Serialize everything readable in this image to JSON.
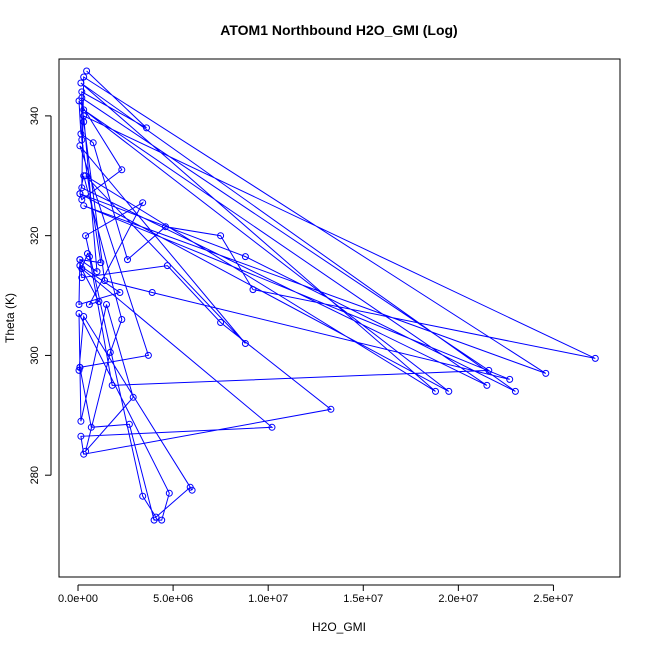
{
  "chart_data": {
    "type": "scatter",
    "title": "ATOM1 Northbound H2O_GMI (Log)",
    "xlabel": "H2O_GMI",
    "ylabel": "Theta (K)",
    "xlim": [
      -1000000,
      28500000
    ],
    "ylim": [
      263,
      349.5
    ],
    "xticks": [
      0,
      5000000,
      10000000,
      15000000,
      20000000,
      25000000
    ],
    "xtick_labels": [
      "0.0e+00",
      "5.0e+06",
      "1.0e+07",
      "1.5e+07",
      "2.0e+07",
      "2.5e+07"
    ],
    "yticks": [
      280,
      300,
      320,
      340
    ],
    "ytick_labels": [
      "280",
      "300",
      "320",
      "340"
    ],
    "color": "#0000ff",
    "marker": "open-circle",
    "connected": true,
    "grid": false,
    "legend": "none",
    "series": [
      {
        "x": [
          450000,
          3600000,
          200000,
          200000,
          1200000,
          100000,
          50000,
          2200000,
          100000,
          1100000,
          600000,
          3400000,
          400000,
          3400000,
          4100000,
          5900000,
          6000000,
          300000,
          50000,
          100000,
          700000,
          2700000,
          4000000,
          4400000,
          4800000,
          50000,
          150000,
          1500000,
          2900000,
          400000,
          1700000,
          2300000,
          300000,
          100000,
          200000,
          2300000,
          50000,
          150000,
          800000,
          2600000,
          4600000,
          7500000,
          9200000,
          27200000,
          300000,
          1000000,
          100000,
          200000,
          4700000,
          7500000,
          13300000,
          300000,
          150000,
          10200000,
          200000,
          500000,
          600000,
          1800000,
          21600000,
          200000,
          300000,
          1400000,
          3900000,
          22700000,
          300000,
          24600000,
          300000,
          200000,
          21500000,
          300000,
          19500000,
          100000,
          8800000,
          23000000,
          150000,
          18800000,
          400000,
          8800000,
          100000,
          3700000,
          100000
        ],
        "y": [
          347.5,
          338,
          344,
          336,
          315.5,
          316,
          308.5,
          310.5,
          315,
          309,
          308.5,
          325.5,
          320,
          276.5,
          273,
          278,
          277.5,
          306.5,
          297.5,
          298,
          288,
          288.5,
          272.5,
          272.5,
          277,
          307,
          289,
          308.5,
          293,
          284,
          300.5,
          306,
          330,
          327,
          326,
          331,
          342.5,
          337,
          335.5,
          316,
          321.5,
          320,
          311,
          299.5,
          340,
          314,
          316,
          313,
          315,
          305.5,
          291,
          283.5,
          286.5,
          288,
          314.5,
          317,
          316.5,
          295,
          297.5,
          343,
          339,
          312.5,
          310.5,
          296,
          325,
          297,
          346.5,
          328,
          295,
          341,
          294,
          327,
          316.5,
          294,
          345.5,
          294,
          330,
          302,
          335,
          300,
          298
        ]
      }
    ]
  }
}
